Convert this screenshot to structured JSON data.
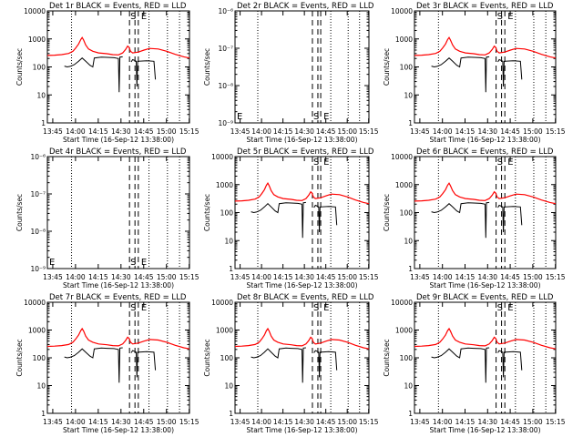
{
  "chart_data": {
    "type": "line",
    "x_tick_labels": [
      "13:45",
      "14:00",
      "14:15",
      "14:30",
      "14:45",
      "15:00",
      "15:15"
    ],
    "xlabel": "Start Time (16-Sep-12 13:38:00)",
    "ylabel": "Counts/sec",
    "yscale": "log",
    "series_legend": {
      "black": "Events",
      "red": "LLD"
    },
    "panels": [
      {
        "title": "Det 1r BLACK = Events, RED = LLD",
        "ylim": [
          1,
          10000
        ],
        "y_tick_labels": [
          "1",
          "10",
          "100",
          "1000",
          "10000"
        ],
        "has_data": true,
        "S_label": "S",
        "E_label": "E",
        "S_label_pos": "top",
        "E_label_pos": "top"
      },
      {
        "title": "Det 2r BLACK = Events, RED = LLD",
        "ylim": [
          1e-09,
          1e-06
        ],
        "y_tick_labels": [
          "10⁻⁹",
          "10⁻⁸",
          "10⁻⁷",
          "10⁻⁶"
        ],
        "has_data": false,
        "S_label": "S",
        "E_label": "E",
        "S_label_pos": "bottom",
        "E_label_pos": "bottom"
      },
      {
        "title": "Det 3r BLACK = Events, RED = LLD",
        "ylim": [
          1,
          10000
        ],
        "y_tick_labels": [
          "1",
          "10",
          "100",
          "1000",
          "10000"
        ],
        "has_data": true,
        "S_label": "S",
        "E_label": "E",
        "S_label_pos": "top",
        "E_label_pos": "top"
      },
      {
        "title": "Det 4r BLACK = Events, RED = LLD",
        "ylim": [
          1e-09,
          1e-06
        ],
        "y_tick_labels": [
          "10⁻⁹",
          "10⁻⁸",
          "10⁻⁷",
          "10⁻⁶"
        ],
        "has_data": false,
        "S_label": "S",
        "E_label": "E",
        "S_label_pos": "bottom",
        "E_label_pos": "bottom"
      },
      {
        "title": "Det 5r BLACK = Events, RED = LLD",
        "ylim": [
          1,
          10000
        ],
        "y_tick_labels": [
          "1",
          "10",
          "100",
          "1000",
          "10000"
        ],
        "has_data": true,
        "S_label": "S",
        "E_label": "E",
        "S_label_pos": "top",
        "E_label_pos": "top"
      },
      {
        "title": "Det 6r BLACK = Events, RED = LLD",
        "ylim": [
          1,
          10000
        ],
        "y_tick_labels": [
          "1",
          "10",
          "100",
          "1000",
          "10000"
        ],
        "has_data": true,
        "S_label": "S",
        "E_label": "E",
        "S_label_pos": "top",
        "E_label_pos": "top"
      },
      {
        "title": "Det 7r BLACK = Events, RED = LLD",
        "ylim": [
          1,
          10000
        ],
        "y_tick_labels": [
          "1",
          "10",
          "100",
          "1000",
          "10000"
        ],
        "has_data": true,
        "S_label": "S",
        "E_label": "E",
        "S_label_pos": "top",
        "E_label_pos": "top"
      },
      {
        "title": "Det 8r BLACK = Events, RED = LLD",
        "ylim": [
          1,
          10000
        ],
        "y_tick_labels": [
          "1",
          "10",
          "100",
          "1000",
          "10000"
        ],
        "has_data": true,
        "S_label": "S",
        "E_label": "E",
        "S_label_pos": "top",
        "E_label_pos": "top"
      },
      {
        "title": "Det 9r BLACK = Events, RED = LLD",
        "ylim": [
          1,
          10000
        ],
        "y_tick_labels": [
          "1",
          "10",
          "100",
          "1000",
          "10000"
        ],
        "has_data": true,
        "S_label": "S",
        "E_label": "E",
        "S_label_pos": "top",
        "E_label_pos": "top"
      }
    ],
    "colors": {
      "events": "#000000",
      "lld": "#ff0000",
      "axes": "#000000"
    }
  }
}
